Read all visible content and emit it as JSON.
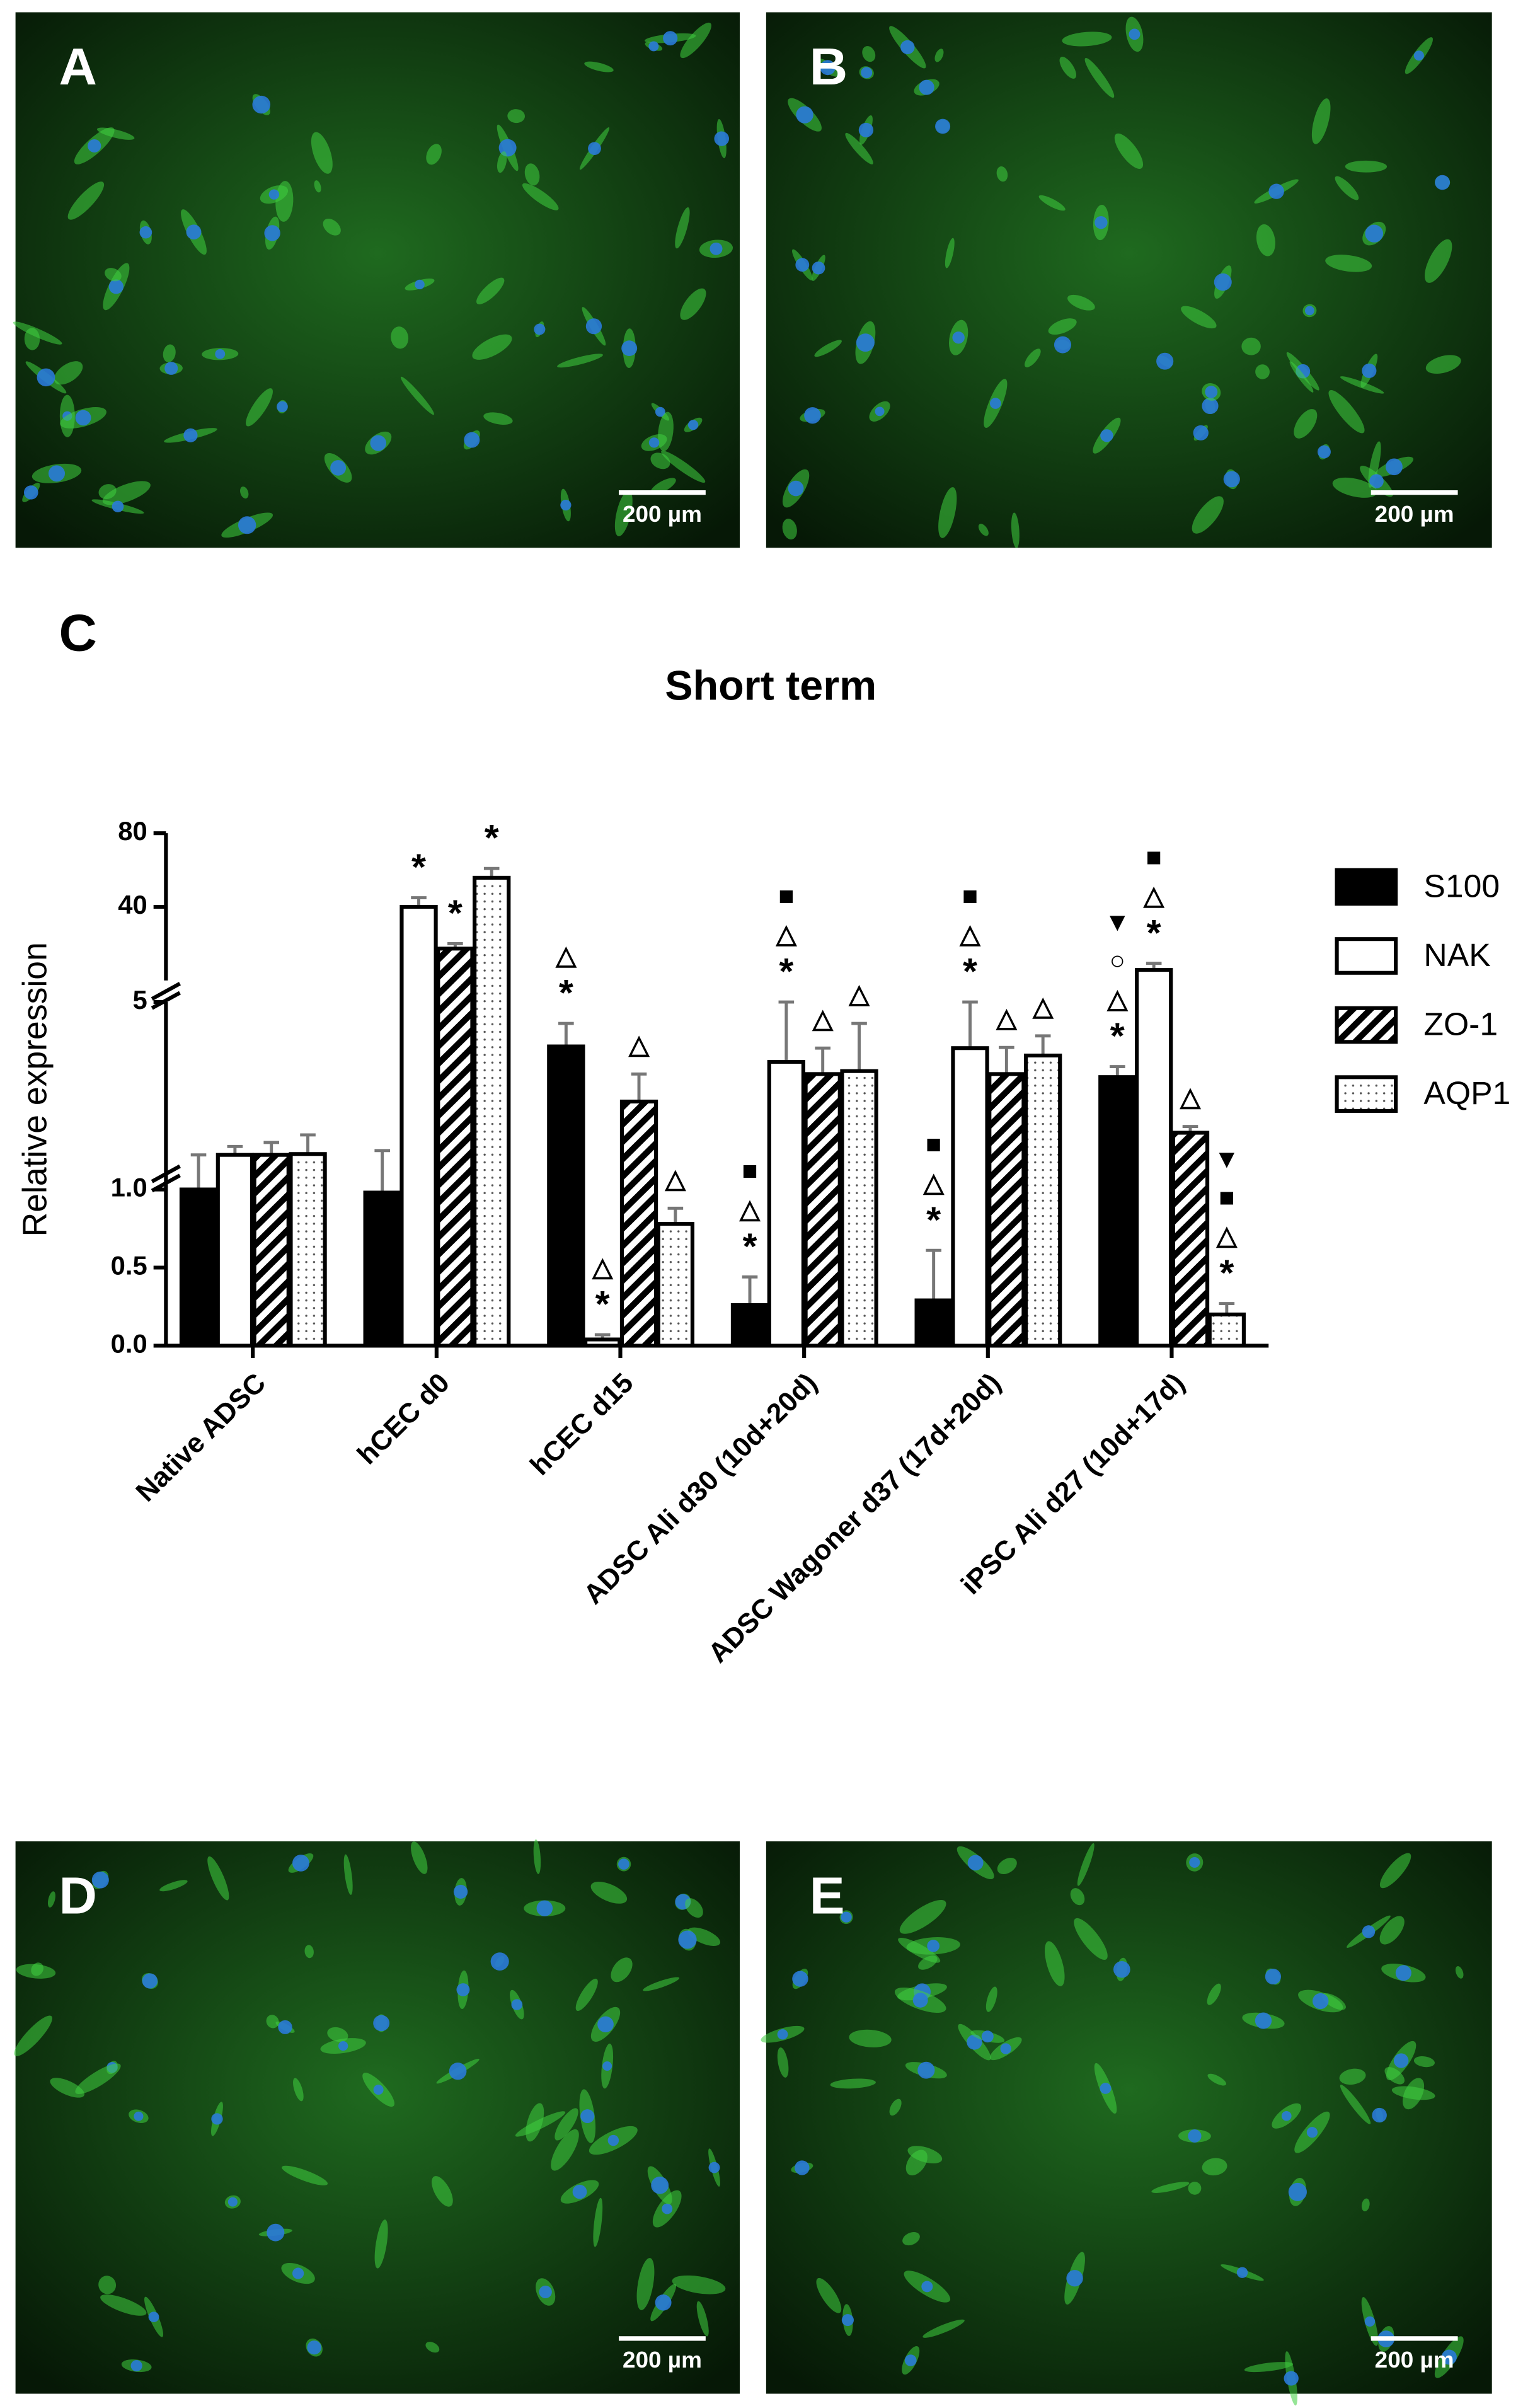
{
  "panels": [
    {
      "label": "A",
      "scale_bar": "200 µm"
    },
    {
      "label": "B",
      "scale_bar": "200 µm"
    },
    {
      "label": "D",
      "scale_bar": "200 µm"
    },
    {
      "label": "E",
      "scale_bar": "200 µm"
    }
  ],
  "chart_label": "C",
  "chart_data": {
    "type": "bar",
    "title": "Short term",
    "y_label": "Relative expression",
    "categories": [
      "Native ADSC",
      "hCEC d0",
      "hCEC d15",
      "ADSC Ali d30 (10d+20d)",
      "ADSC Wagoner d37 (17d+20d)",
      "iPSC Ali d27 (10d+17d)"
    ],
    "y_segments": [
      {
        "ylim": [
          0,
          1.1
        ],
        "scale": "linear"
      },
      {
        "ylim": [
          1.1,
          5
        ],
        "scale": "log"
      },
      {
        "ylim": [
          20,
          80
        ],
        "scale": "log"
      }
    ],
    "yticks": [
      {
        "value": 0,
        "label": "0.0"
      },
      0.5,
      {
        "value": 1,
        "label": "1.0"
      },
      5,
      40,
      80
    ],
    "legend": "right",
    "series": [
      {
        "name": "S100",
        "color": "#000000",
        "pattern": "solid",
        "values": [
          1.0,
          0.98,
          3.38,
          0.26,
          0.29,
          2.58
        ],
        "errors": [
          0.3,
          0.37,
          0.76,
          0.18,
          0.32,
          0.25
        ],
        "markers": [
          null,
          null,
          [
            "△",
            "*"
          ],
          [
            "■",
            "△",
            "*"
          ],
          [
            "■",
            "△",
            "*"
          ],
          [
            "▼",
            "○",
            "△",
            "*"
          ]
        ]
      },
      {
        "name": "NAK",
        "color": "#ffffff",
        "pattern": "solid",
        "values": [
          1.3,
          40,
          0.04,
          2.95,
          3.33,
          22.1
        ],
        "errors": [
          0.1,
          3.6,
          0.03,
          2.05,
          1.67,
          1.4
        ],
        "markers": [
          null,
          [
            "*"
          ],
          [
            "△",
            "*"
          ],
          [
            "■",
            "△",
            "*"
          ],
          [
            "■",
            "△",
            "*"
          ],
          [
            "■",
            "△",
            "*"
          ]
        ]
      },
      {
        "name": "ZO-1",
        "color": "#000000",
        "pattern": "hatch",
        "values": [
          1.3,
          27,
          2.08,
          2.65,
          2.65,
          1.58
        ],
        "errors": [
          0.15,
          1.3,
          0.57,
          0.68,
          0.7,
          0.09
        ],
        "markers": [
          null,
          [
            "*"
          ],
          [
            "△"
          ],
          [
            "△"
          ],
          [
            "△"
          ],
          [
            "△"
          ]
        ]
      },
      {
        "name": "AQP1",
        "color": "#000000",
        "pattern": "dots",
        "values": [
          1.31,
          52.6,
          0.78,
          2.72,
          3.12,
          0.2
        ],
        "errors": [
          0.24,
          4.8,
          0.1,
          1.42,
          0.59,
          0.07
        ],
        "markers": [
          null,
          [
            "*"
          ],
          [
            "△"
          ],
          [
            "△"
          ],
          [
            "△"
          ],
          [
            "▼",
            "■",
            "△",
            "*"
          ]
        ]
      }
    ]
  }
}
